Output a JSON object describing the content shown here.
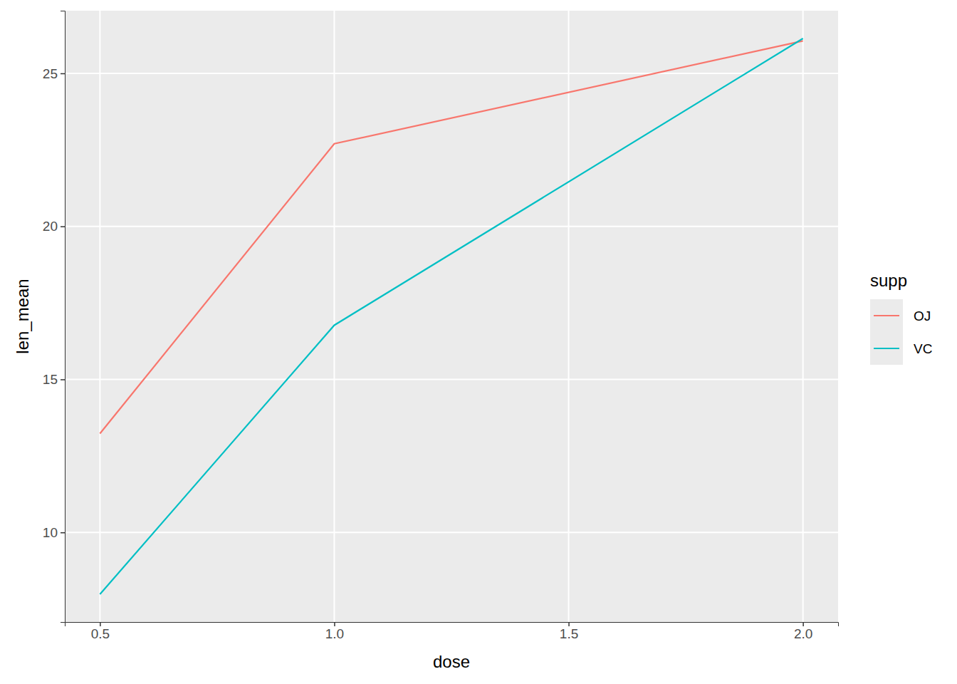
{
  "chart_data": {
    "type": "line",
    "x_label": "dose",
    "y_label": "len_mean",
    "x": [
      0.5,
      1,
      2
    ],
    "series": [
      {
        "name": "OJ",
        "color": "#F8766D",
        "values": [
          13.23,
          22.7,
          26.06
        ]
      },
      {
        "name": "VC",
        "color": "#00BFC4",
        "values": [
          7.98,
          16.77,
          26.14
        ]
      }
    ],
    "xlim": [
      0.425,
      2.075
    ],
    "xticks": [
      0.5,
      {
        "value": 1,
        "label": "1.0"
      },
      1.5,
      {
        "value": 2,
        "label": "2.0"
      }
    ],
    "ylim": [
      7.072,
      27.048
    ],
    "yticks": [
      10,
      15,
      20,
      25
    ],
    "grid": true,
    "legend": "right",
    "legend_title": "supp"
  }
}
